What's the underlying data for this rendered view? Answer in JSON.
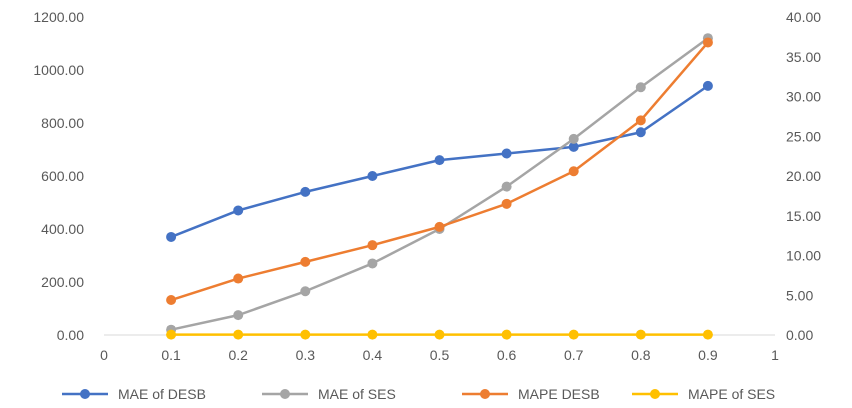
{
  "chart_data": {
    "type": "line",
    "x": [
      0.1,
      0.2,
      0.3,
      0.4,
      0.5,
      0.6,
      0.7,
      0.8,
      0.9
    ],
    "xlim": [
      0,
      1
    ],
    "x_ticks": [
      "0",
      "0.1",
      "0.2",
      "0.3",
      "0.4",
      "0.5",
      "0.6",
      "0.7",
      "0.8",
      "0.9",
      "1"
    ],
    "y_left": {
      "lim": [
        0,
        1200
      ],
      "ticks": [
        "0.00",
        "200.00",
        "400.00",
        "600.00",
        "800.00",
        "1000.00",
        "1200.00"
      ]
    },
    "y_right": {
      "lim": [
        0,
        40
      ],
      "ticks": [
        "0.00",
        "5.00",
        "10.00",
        "15.00",
        "20.00",
        "25.00",
        "30.00",
        "35.00",
        "40.00"
      ]
    },
    "grid": false,
    "legend_position": "bottom",
    "series": [
      {
        "name": "MAE of DESB",
        "axis": "left",
        "color": "#4472C4",
        "values": [
          370,
          470,
          540,
          600,
          660,
          685,
          710,
          765,
          940
        ]
      },
      {
        "name": "MAE of SES",
        "axis": "left",
        "color": "#A5A5A5",
        "values": [
          20,
          75,
          165,
          270,
          400,
          560,
          740,
          935,
          1120
        ]
      },
      {
        "name": "MAPE DESB",
        "axis": "right",
        "color": "#ED7D31",
        "values": [
          4.4,
          7.1,
          9.2,
          11.3,
          13.6,
          16.5,
          20.6,
          27.0,
          36.8
        ]
      },
      {
        "name": "MAPE of SES",
        "axis": "right",
        "color": "#FFC000",
        "values": [
          0.05,
          0.05,
          0.05,
          0.05,
          0.05,
          0.05,
          0.05,
          0.05,
          0.05
        ]
      }
    ]
  }
}
